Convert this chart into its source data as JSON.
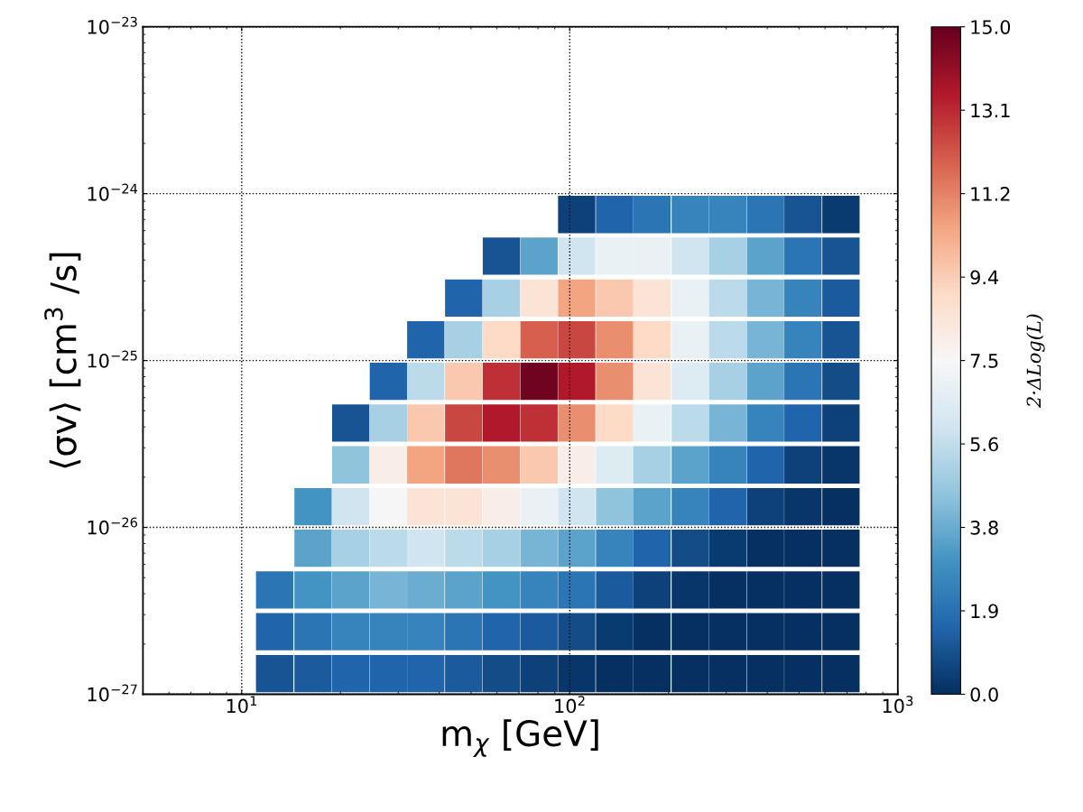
{
  "chart_data": {
    "type": "scatter",
    "xlabel": "m$_{χ}$ [GeV]",
    "ylabel": "⟨σv⟩ [cm$^{3}$ /s]",
    "clabel": "2·ΔLog(L)",
    "log": "xy",
    "grid": true,
    "marker": "square",
    "xlim": [
      5,
      1000
    ],
    "xticks": [
      {
        "value": 10,
        "label": "10$^{1}$"
      },
      {
        "value": 100,
        "label": "10$^{2}$"
      },
      {
        "value": 1000,
        "label": "10$^{3}$"
      }
    ],
    "ylim": [
      1e-27,
      1e-23
    ],
    "yticks": [
      {
        "value": 1e-27,
        "label": "10$^{−27}$"
      },
      {
        "value": 1e-26,
        "label": "10$^{−26}$"
      },
      {
        "value": 1e-25,
        "label": "10$^{−25}$"
      },
      {
        "value": 1e-24,
        "label": "10$^{−24}$"
      },
      {
        "value": 1e-23,
        "label": "10$^{−23}$"
      }
    ],
    "x": [
      105,
      137,
      178,
      233,
      303,
      395,
      514,
      671,
      61.9,
      80.6,
      105,
      137,
      178,
      233,
      303,
      395,
      514,
      671,
      47.5,
      61.9,
      80.6,
      105,
      137,
      178,
      233,
      303,
      395,
      514,
      671,
      36.4,
      47.5,
      61.9,
      80.6,
      105,
      137,
      178,
      233,
      303,
      395,
      514,
      671,
      28.0,
      36.4,
      47.5,
      61.9,
      80.6,
      105,
      137,
      178,
      233,
      303,
      395,
      514,
      671,
      21.5,
      28.0,
      36.4,
      47.5,
      61.9,
      80.6,
      105,
      137,
      178,
      233,
      303,
      395,
      514,
      671,
      21.5,
      28.0,
      36.4,
      47.5,
      61.9,
      80.6,
      105,
      137,
      178,
      233,
      303,
      395,
      514,
      671,
      16.5,
      21.5,
      28.0,
      36.4,
      47.5,
      61.9,
      80.6,
      105,
      137,
      178,
      233,
      303,
      395,
      514,
      671,
      16.5,
      21.5,
      28.0,
      36.4,
      47.5,
      61.9,
      80.6,
      105,
      137,
      178,
      233,
      303,
      395,
      514,
      671,
      12.6,
      16.5,
      21.5,
      28.0,
      36.4,
      47.5,
      61.9,
      80.6,
      105,
      137,
      178,
      233,
      303,
      395,
      514,
      671,
      12.6,
      16.5,
      21.5,
      28.0,
      36.4,
      47.5,
      61.9,
      80.6,
      105,
      137,
      178,
      233,
      303,
      395,
      514,
      671,
      12.6,
      16.5,
      21.5,
      28.0,
      36.4,
      47.5,
      61.9,
      80.6,
      105,
      137,
      178,
      233,
      303,
      395,
      514,
      671
    ],
    "values": [
      7.5e-25,
      7.5e-25,
      7.5e-25,
      7.5e-25,
      7.5e-25,
      7.5e-25,
      7.5e-25,
      7.5e-25,
      4.22e-25,
      4.22e-25,
      4.22e-25,
      4.22e-25,
      4.22e-25,
      4.22e-25,
      4.22e-25,
      4.22e-25,
      4.22e-25,
      4.22e-25,
      2.37e-25,
      2.37e-25,
      2.37e-25,
      2.37e-25,
      2.37e-25,
      2.37e-25,
      2.37e-25,
      2.37e-25,
      2.37e-25,
      2.37e-25,
      2.37e-25,
      1.33e-25,
      1.33e-25,
      1.33e-25,
      1.33e-25,
      1.33e-25,
      1.33e-25,
      1.33e-25,
      1.33e-25,
      1.33e-25,
      1.33e-25,
      1.33e-25,
      1.33e-25,
      7.5e-26,
      7.5e-26,
      7.5e-26,
      7.5e-26,
      7.5e-26,
      7.5e-26,
      7.5e-26,
      7.5e-26,
      7.5e-26,
      7.5e-26,
      7.5e-26,
      7.5e-26,
      7.5e-26,
      4.22e-26,
      4.22e-26,
      4.22e-26,
      4.22e-26,
      4.22e-26,
      4.22e-26,
      4.22e-26,
      4.22e-26,
      4.22e-26,
      4.22e-26,
      4.22e-26,
      4.22e-26,
      4.22e-26,
      4.22e-26,
      2.37e-26,
      2.37e-26,
      2.37e-26,
      2.37e-26,
      2.37e-26,
      2.37e-26,
      2.37e-26,
      2.37e-26,
      2.37e-26,
      2.37e-26,
      2.37e-26,
      2.37e-26,
      2.37e-26,
      2.37e-26,
      1.33e-26,
      1.33e-26,
      1.33e-26,
      1.33e-26,
      1.33e-26,
      1.33e-26,
      1.33e-26,
      1.33e-26,
      1.33e-26,
      1.33e-26,
      1.33e-26,
      1.33e-26,
      1.33e-26,
      1.33e-26,
      1.33e-26,
      7.5e-27,
      7.5e-27,
      7.5e-27,
      7.5e-27,
      7.5e-27,
      7.5e-27,
      7.5e-27,
      7.5e-27,
      7.5e-27,
      7.5e-27,
      7.5e-27,
      7.5e-27,
      7.5e-27,
      7.5e-27,
      7.5e-27,
      4.22e-27,
      4.22e-27,
      4.22e-27,
      4.22e-27,
      4.22e-27,
      4.22e-27,
      4.22e-27,
      4.22e-27,
      4.22e-27,
      4.22e-27,
      4.22e-27,
      4.22e-27,
      4.22e-27,
      4.22e-27,
      4.22e-27,
      4.22e-27,
      2.37e-27,
      2.37e-27,
      2.37e-27,
      2.37e-27,
      2.37e-27,
      2.37e-27,
      2.37e-27,
      2.37e-27,
      2.37e-27,
      2.37e-27,
      2.37e-27,
      2.37e-27,
      2.37e-27,
      2.37e-27,
      2.37e-27,
      2.37e-27,
      1.33e-27,
      1.33e-27,
      1.33e-27,
      1.33e-27,
      1.33e-27,
      1.33e-27,
      1.33e-27,
      1.33e-27,
      1.33e-27,
      1.33e-27,
      1.33e-27,
      1.33e-27,
      1.33e-27,
      1.33e-27,
      1.33e-27,
      1.33e-27
    ],
    "cvalues": [
      0.5,
      1.5,
      2,
      2.5,
      2.5,
      2,
      1,
      0.3,
      1,
      3.5,
      6,
      7,
      7,
      6,
      5,
      3.5,
      2,
      1,
      1.5,
      5,
      8.5,
      10.5,
      9.5,
      8.5,
      7,
      5.5,
      4,
      2.5,
      1.2,
      1.5,
      5,
      9,
      12,
      12.5,
      11,
      9,
      7,
      5.5,
      4,
      2.5,
      1,
      1.5,
      5.5,
      9.5,
      13,
      14.8,
      13.5,
      11,
      8.5,
      6.5,
      5,
      3.5,
      2,
      0.8,
      1,
      5,
      9.5,
      12.5,
      13.5,
      13,
      11,
      9,
      7,
      5.5,
      4,
      2.5,
      1.5,
      0.5,
      4.5,
      8,
      10.5,
      11.5,
      11,
      9.5,
      8,
      6.5,
      5,
      3.5,
      2.5,
      1.5,
      0.5,
      0.2,
      3,
      6,
      7.5,
      8.5,
      8.5,
      8,
      7,
      6,
      4.5,
      3.5,
      2.5,
      1.5,
      0.5,
      0.2,
      0,
      3.5,
      5,
      5.5,
      6,
      5.5,
      5,
      4,
      3.5,
      2.5,
      1.5,
      0.8,
      0.3,
      0,
      0,
      0,
      2,
      3,
      3.5,
      4,
      3.8,
      3.5,
      3,
      2.5,
      2,
      1.2,
      0.5,
      0.2,
      0,
      0,
      0,
      0,
      1.5,
      2,
      2.5,
      2.5,
      2.5,
      2,
      1.5,
      1.2,
      0.8,
      0.3,
      0,
      0,
      0,
      0,
      0,
      0,
      1,
      1.2,
      1.5,
      1.5,
      1.5,
      1.2,
      0.8,
      0.5,
      0.2,
      0,
      0,
      0,
      0,
      0,
      0,
      0
    ],
    "clim": [
      0,
      15
    ],
    "cticks": [
      {
        "value": 0,
        "label": "0.0"
      },
      {
        "value": 1.875,
        "label": "1.9"
      },
      {
        "value": 3.75,
        "label": "3.8"
      },
      {
        "value": 5.625,
        "label": "5.6"
      },
      {
        "value": 7.5,
        "label": "7.5"
      },
      {
        "value": 9.375,
        "label": "9.4"
      },
      {
        "value": 11.25,
        "label": "11.2"
      },
      {
        "value": 13.125,
        "label": "13.1"
      },
      {
        "value": 15,
        "label": "15.0"
      }
    ]
  }
}
